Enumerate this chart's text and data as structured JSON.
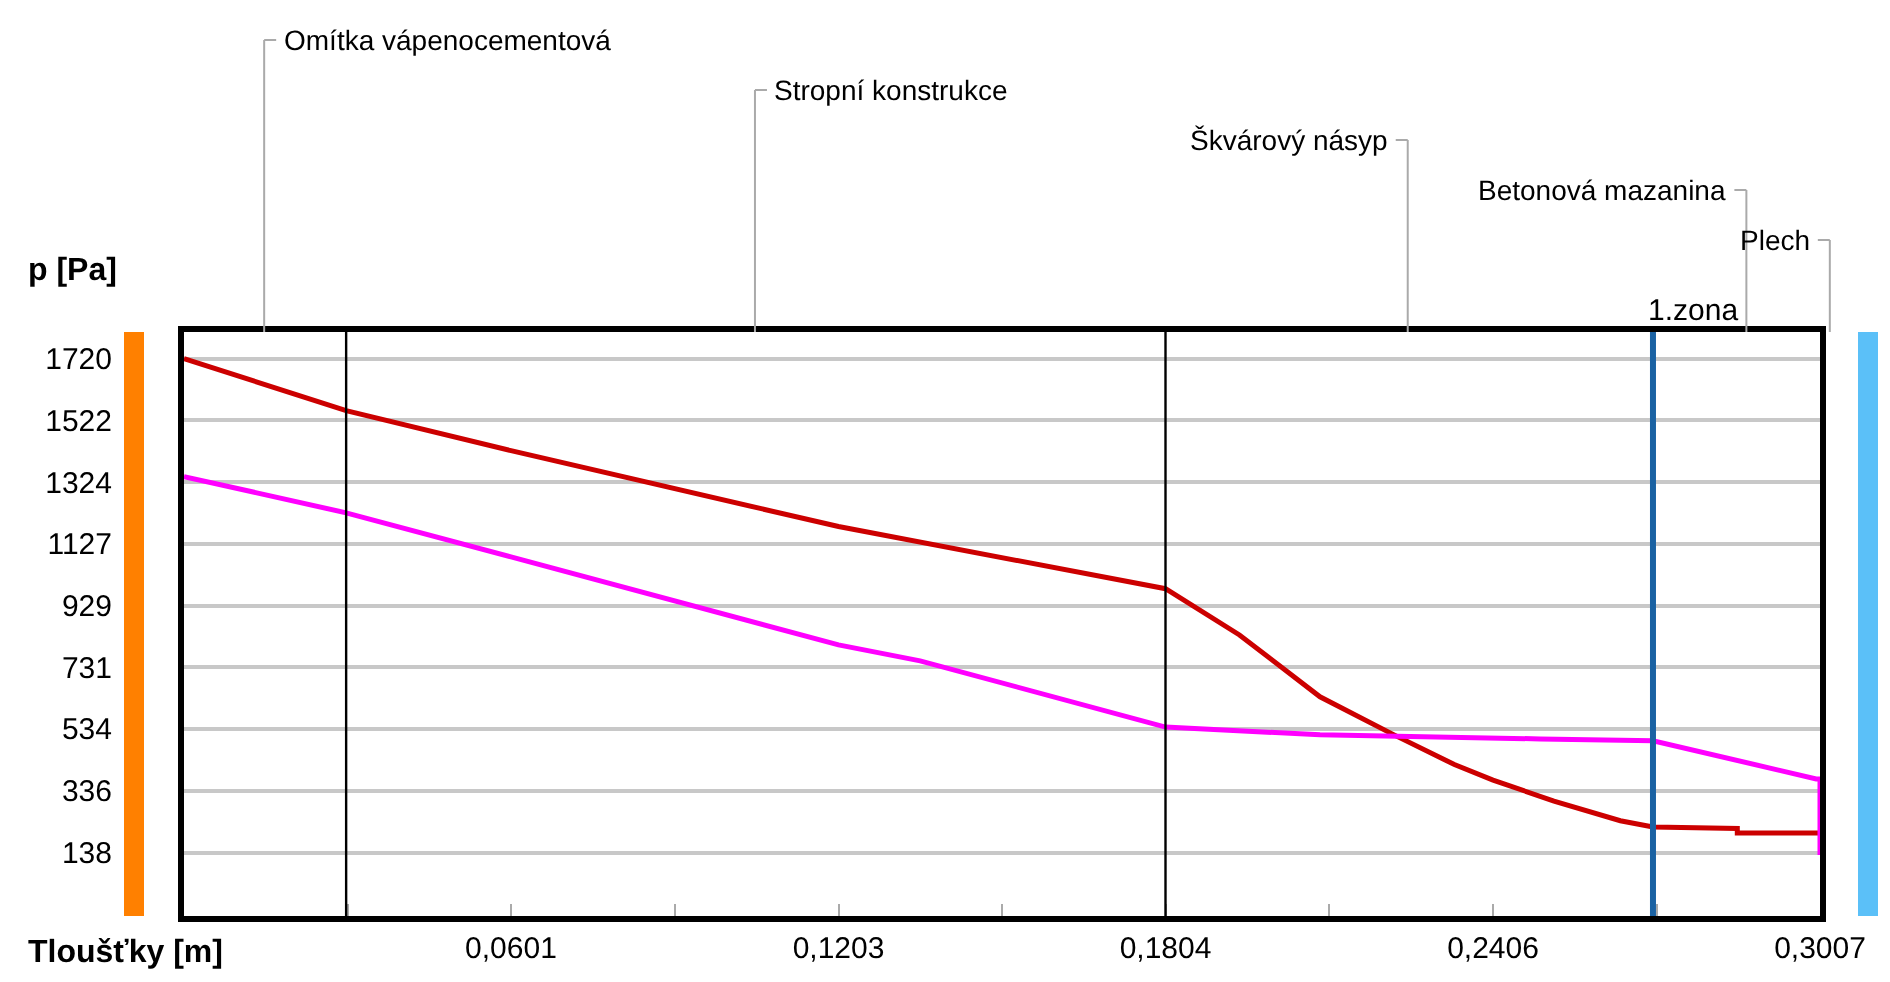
{
  "chart_data": {
    "type": "line",
    "xlabel": "Tloušťky [m]",
    "ylabel": "p [Pa]",
    "xlim": [
      0,
      0.3007
    ],
    "ylim": [
      -65,
      1805
    ],
    "xticks": [
      {
        "value": 0.0301,
        "label": null
      },
      {
        "value": 0.0601,
        "label": "0,0601"
      },
      {
        "value": 0.0902,
        "label": null
      },
      {
        "value": 0.1203,
        "label": "0,1203"
      },
      {
        "value": 0.1504,
        "label": null
      },
      {
        "value": 0.1804,
        "label": "0,1804"
      },
      {
        "value": 0.2105,
        "label": null
      },
      {
        "value": 0.2406,
        "label": "0,2406"
      },
      {
        "value": 0.2707,
        "label": null
      },
      {
        "value": 0.3007,
        "label": "0,3007"
      }
    ],
    "yticks": [
      138,
      336,
      534,
      731,
      929,
      1127,
      1324,
      1522,
      1720
    ],
    "grid": "y",
    "marker": "none",
    "line_style": "solid",
    "series": [
      {
        "color": "#cc0000",
        "x": [
          0,
          0.0298,
          0.0601,
          0.1203,
          0.1804,
          0.194,
          0.2088,
          0.2224,
          0.2335,
          0.2406,
          0.2518,
          0.264,
          0.27,
          0.2855,
          0.2855,
          0.3007
        ],
        "values": [
          1720,
          1553,
          1425,
          1182,
          983,
          835,
          637,
          515,
          420,
          370,
          303,
          240,
          220,
          215,
          201,
          201
        ]
      },
      {
        "color": "#ff00ff",
        "x": [
          0,
          0.0298,
          0.0601,
          0.1203,
          0.1353,
          0.1804,
          0.2088,
          0.2493,
          0.27,
          0.3,
          0.3007,
          0.3007
        ],
        "values": [
          1342,
          1226,
          1085,
          803,
          752,
          540,
          515,
          502,
          496,
          374,
          374,
          130
        ]
      }
    ],
    "ref_lines": [
      {
        "axis": "x",
        "value": 0.0298,
        "color": "#000000"
      },
      {
        "axis": "x",
        "value": 0.1804,
        "color": "#000000"
      },
      {
        "axis": "x",
        "value": 0.27,
        "label": "1.zona",
        "color": "#1a62a3"
      }
    ],
    "annotations": [
      "Omítka vápenocementová",
      "Stropní konstrukce",
      "Škvárový násyp",
      "Betonová mazanina",
      "Plech"
    ]
  }
}
